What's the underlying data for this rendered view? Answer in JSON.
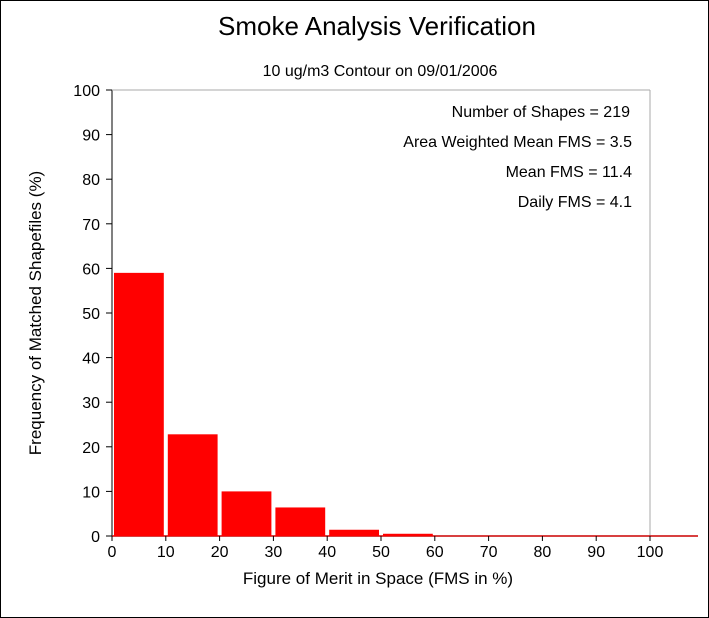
{
  "chart_data": {
    "type": "bar",
    "title": "Smoke Analysis Verification",
    "subtitle": "10 ug/m3 Contour on 09/01/2006",
    "xlabel": "Figure of Merit in Space (FMS in %)",
    "ylabel": "Frequency of Matched Shapefiles (%)",
    "xlim": [
      0,
      100
    ],
    "ylim": [
      0,
      100
    ],
    "xticks": [
      "0",
      "10",
      "20",
      "30",
      "40",
      "50",
      "60",
      "70",
      "80",
      "90",
      "100"
    ],
    "yticks": [
      "0",
      "10",
      "20",
      "30",
      "40",
      "50",
      "60",
      "70",
      "80",
      "90",
      "100"
    ],
    "bins": [
      {
        "start": 0,
        "end": 10,
        "value": 59.0
      },
      {
        "start": 10,
        "end": 20,
        "value": 22.8
      },
      {
        "start": 20,
        "end": 30,
        "value": 10.0
      },
      {
        "start": 30,
        "end": 40,
        "value": 6.4
      },
      {
        "start": 40,
        "end": 50,
        "value": 1.4
      },
      {
        "start": 50,
        "end": 60,
        "value": 0.5
      },
      {
        "start": 60,
        "end": 70,
        "value": 0
      },
      {
        "start": 70,
        "end": 80,
        "value": 0
      },
      {
        "start": 80,
        "end": 90,
        "value": 0
      },
      {
        "start": 90,
        "end": 100,
        "value": 0
      }
    ],
    "bar_color": "#ff0000",
    "grid": false,
    "annotations": [
      "Number of Shapes = 219",
      "Area Weighted Mean FMS = 3.5",
      "Mean FMS = 11.4",
      "Daily FMS = 4.1"
    ]
  }
}
